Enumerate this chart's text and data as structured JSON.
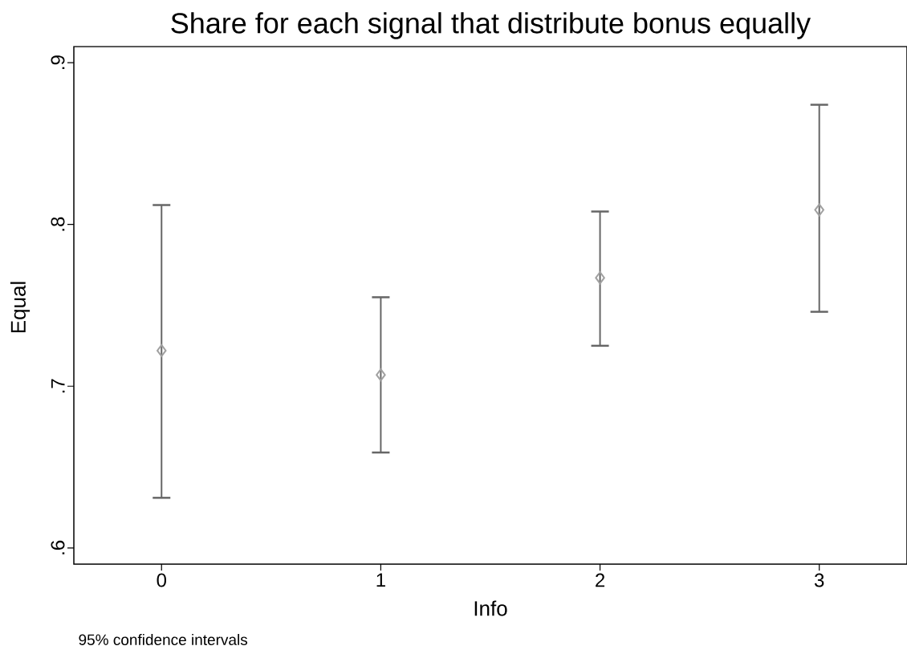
{
  "chart_data": {
    "type": "scatter",
    "title": "Share for each signal that distribute bonus equally",
    "xlabel": "Info",
    "ylabel": "Equal",
    "annotations": [
      "95% confidence intervals"
    ],
    "x": [
      0,
      1,
      2,
      3
    ],
    "values": [
      0.722,
      0.707,
      0.767,
      0.809
    ],
    "errors": [
      [
        0.631,
        0.812
      ],
      [
        0.659,
        0.755
      ],
      [
        0.725,
        0.808
      ],
      [
        0.746,
        0.874
      ]
    ],
    "color": "#a0a0a0",
    "marker": "diamond",
    "grid": false,
    "xlim": [
      -0.4,
      3.4
    ],
    "xticks": [
      0,
      1,
      2,
      3
    ],
    "ylim": [
      0.59,
      0.91
    ],
    "yticks": [
      {
        "value": 0.6,
        "label": ".6"
      },
      {
        "value": 0.7,
        "label": ".7"
      },
      {
        "value": 0.8,
        "label": ".8"
      },
      {
        "value": 0.9,
        "label": ".9"
      }
    ]
  }
}
